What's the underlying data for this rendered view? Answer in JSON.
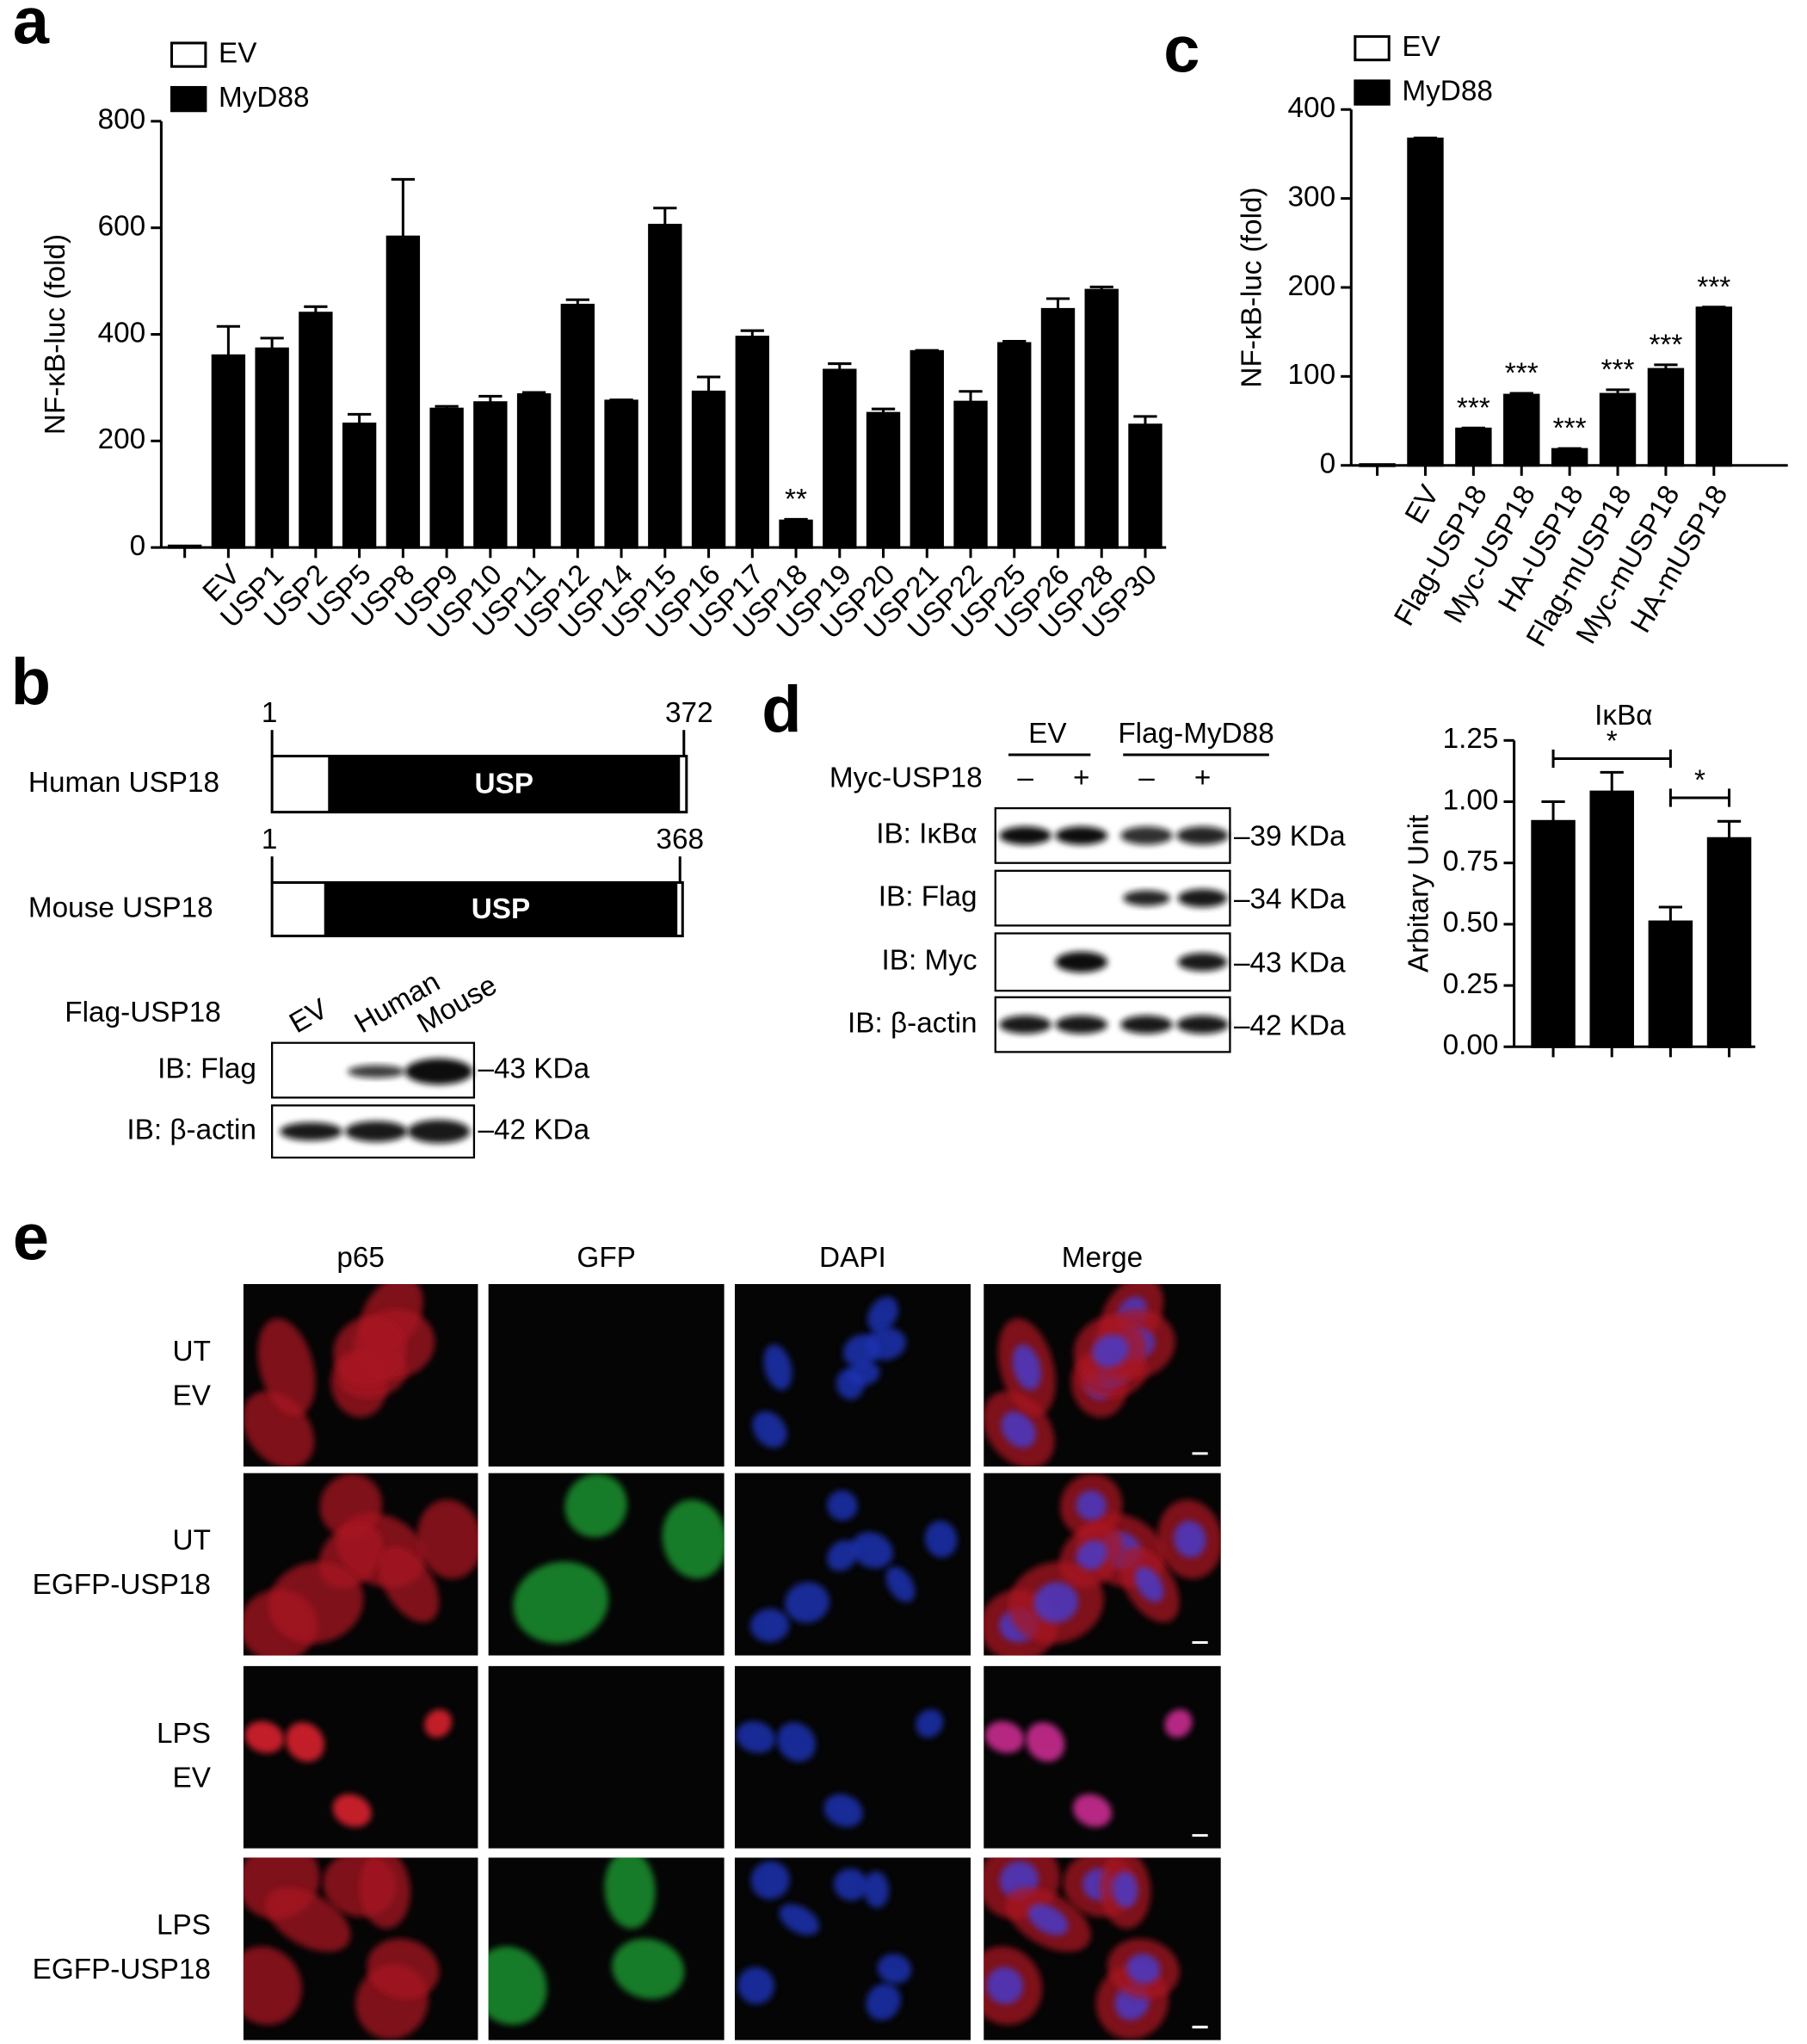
{
  "panel_labels": [
    "a",
    "b",
    "c",
    "d",
    "e"
  ],
  "chart_data": [
    {
      "type": "bar",
      "ylabel": "NF-κB-luc (fold)",
      "categories": [
        null,
        "EV",
        "USP1",
        "USP2",
        "USP5",
        "USP8",
        "USP9",
        "USP10",
        "USP11",
        "USP12",
        "USP14",
        "USP15",
        "USP16",
        "USP17",
        "USP18",
        "USP19",
        "USP20",
        "USP21",
        "USP22",
        "USP25",
        "USP26",
        "USP28",
        "USP30"
      ],
      "series": [
        {
          "name": "EV",
          "color": "#ffffff",
          "values": [
            3,
            null,
            null,
            null,
            null,
            null,
            null,
            null,
            null,
            null,
            null,
            null,
            null,
            null,
            null,
            null,
            null,
            null,
            null,
            null,
            null,
            null,
            null
          ]
        },
        {
          "name": "MyD88",
          "color": "#000000",
          "values": [
            null,
            360,
            373,
            440,
            232,
            583,
            260,
            272,
            287,
            455,
            275,
            605,
            292,
            395,
            50,
            333,
            252,
            368,
            273,
            383,
            447,
            483,
            230
          ],
          "errors": [
            null,
            55,
            20,
            12,
            18,
            108,
            5,
            12,
            4,
            10,
            2,
            32,
            28,
            12,
            3,
            12,
            8,
            2,
            20,
            4,
            20,
            6,
            16
          ],
          "significance": [
            null,
            null,
            null,
            null,
            null,
            null,
            null,
            null,
            null,
            null,
            null,
            null,
            null,
            null,
            "**",
            null,
            null,
            null,
            null,
            null,
            null,
            null,
            null
          ]
        }
      ],
      "ylim": [
        0,
        800
      ],
      "yticks": [
        0,
        200,
        400,
        600,
        800
      ]
    },
    {
      "type": "bar",
      "ylabel": "NF-κB-luc (fold)",
      "categories": [
        null,
        "EV",
        "Flag-USP18",
        "Myc-USP18",
        "HA-USP18",
        "Flag-mUSP18",
        "Myc-mUSP18",
        "HA-mUSP18"
      ],
      "series": [
        {
          "name": "EV",
          "color": "#ffffff",
          "values": [
            1,
            null,
            null,
            null,
            null,
            null,
            null,
            null
          ]
        },
        {
          "name": "MyD88",
          "color": "#000000",
          "values": [
            null,
            367,
            41,
            79,
            18,
            80,
            108,
            177
          ],
          "errors": [
            null,
            1,
            1,
            2,
            1,
            5,
            5,
            1
          ],
          "significance": [
            null,
            null,
            "***",
            "***",
            "***",
            "***",
            "***",
            "***"
          ]
        }
      ],
      "ylim": [
        0,
        400
      ],
      "yticks": [
        0,
        100,
        200,
        300,
        400
      ]
    },
    {
      "type": "bar",
      "title": "IκBα",
      "ylabel": "Arbitary Unit",
      "categories": [
        null,
        null,
        null,
        null
      ],
      "series": [
        {
          "color": "#000000",
          "values": [
            0.92,
            1.04,
            0.51,
            0.85
          ],
          "errors": [
            0.08,
            0.08,
            0.06,
            0.07
          ]
        }
      ],
      "annotations": [
        "*",
        "*"
      ],
      "ylim": [
        0,
        1.25
      ],
      "yticks": [
        {
          "value": 0,
          "label": "0.00"
        },
        0.25,
        {
          "value": 0.5,
          "label": "0.50"
        },
        0.75,
        {
          "value": 1,
          "label": "1.00"
        },
        1.25
      ]
    }
  ],
  "domain_diagram": {
    "rows": [
      {
        "name": "Human USP18",
        "start": 1,
        "end": 372,
        "domain": "USP"
      },
      {
        "name": "Mouse USP18",
        "start": 1,
        "end": 368,
        "domain": "USP"
      }
    ]
  },
  "blot_b": {
    "treatment": "Flag-USP18",
    "lanes": [
      "EV",
      "Human",
      "Mouse"
    ],
    "rows": [
      {
        "label": "IB: Flag",
        "size": "–43 KDa"
      },
      {
        "label": "IB: β-actin",
        "size": "–42 KDa"
      }
    ]
  },
  "blot_d": {
    "groups": [
      "EV",
      "Flag-MyD88"
    ],
    "treatment": "Myc-USP18",
    "lane_signs": [
      "–",
      "+",
      "–",
      "+"
    ],
    "rows": [
      {
        "label": "IB: IκBα",
        "size": "–39 KDa"
      },
      {
        "label": "IB: Flag",
        "size": "–34 KDa"
      },
      {
        "label": "IB: Myc",
        "size": "–43 KDa"
      },
      {
        "label": "IB: β-actin",
        "size": "–42 KDa"
      }
    ]
  },
  "microscopy": {
    "columns": [
      "p65",
      "GFP",
      "DAPI",
      "Merge"
    ],
    "rows": [
      [
        "UT",
        "EV"
      ],
      [
        "UT",
        "EGFP-USP18"
      ],
      [
        "LPS",
        "EV"
      ],
      [
        "LPS",
        "EGFP-USP18"
      ]
    ]
  }
}
